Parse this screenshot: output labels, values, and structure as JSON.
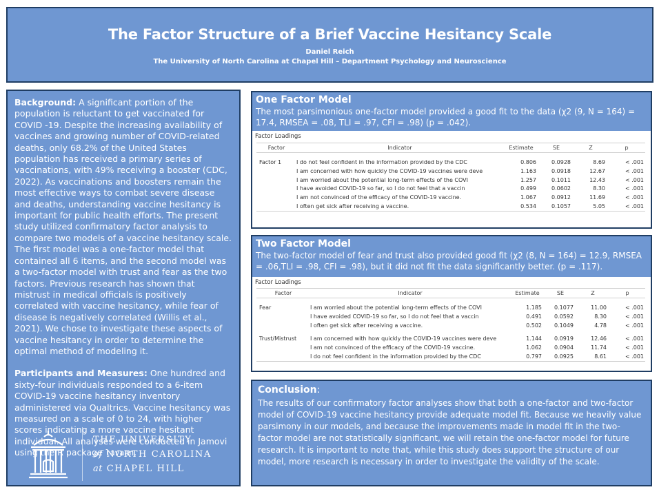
{
  "header": {
    "title": "The Factor Structure of a Brief Vaccine Hesitancy Scale",
    "author": "Daniel Reich",
    "affiliation": "The University of North Carolina at Chapel Hill – Department Psychology and Neuroscience"
  },
  "background": {
    "heading": "Background:",
    "text": " A significant portion of the population is reluctant to get vaccinated for COVID -19. Despite the increasing availability of vaccines and growing number of COVID-related deaths, only 68.2% of the United States population has received a primary series of vaccinations, with 49% receiving a booster (CDC, 2022). As vaccinations and boosters remain the most effective ways to combat severe disease and deaths, understanding vaccine hesitancy is important for public health efforts. The present study utilized confirmatory factor analysis to compare two models of a vaccine hesitancy scale. The first model was a one-factor model that contained all 6 items, and the second model was a two-factor model with trust and fear as the two factors. Previous research has shown that mistrust in medical officials is positively correlated with vaccine hesitancy, while fear of disease is negatively correlated (Willis et al., 2021). We chose to investigate these aspects of vaccine hesitancy in order to determine the optimal method of modeling it."
  },
  "participants": {
    "heading": "Participants and Measures:",
    "text": " One hundred and sixty-four individuals responded to a 6-item COVID-19 vaccine hesitancy inventory administered via Qualtrics. Vaccine hesitancy was measured on a scale of 0 to 24, with higher scores indicating a more vaccine hesitant individual. All analyses were conducted in Jamovi using the R package ",
    "package": "lavaan",
    "end": "."
  },
  "logo": {
    "line1": "THE UNIVERSITY",
    "line2_prefix": "of",
    "line2": "NORTH CAROLINA",
    "line3_prefix": "at",
    "line3": "CHAPEL HILL",
    "icon": "old-well-icon"
  },
  "one_factor": {
    "title": "One Factor Model",
    "description": "The most parsimonious one-factor model provided a good fit to the data (χ2 (9, N = 164) = 17.4, RMSEA = .08, TLI = .97, CFI = .98) (p = .042).",
    "table_caption": "Factor Loadings",
    "columns": [
      "Factor",
      "Indicator",
      "Estimate",
      "SE",
      "Z",
      "p"
    ],
    "rows": [
      {
        "factor": "Factor 1",
        "indicator": "I do not feel confident in the information provided by the CDC",
        "estimate": "0.806",
        "se": "0.0928",
        "z": "8.69",
        "p": "< .001"
      },
      {
        "factor": "",
        "indicator": "I am concerned with how quickly the COVID-19 vaccines were deve",
        "estimate": "1.163",
        "se": "0.0918",
        "z": "12.67",
        "p": "< .001"
      },
      {
        "factor": "",
        "indicator": "I am worried about the potential long-term effects of the COVI",
        "estimate": "1.257",
        "se": "0.1011",
        "z": "12.43",
        "p": "< .001"
      },
      {
        "factor": "",
        "indicator": "I have avoided COVID-19 so far, so I do not feel that a vaccin",
        "estimate": "0.499",
        "se": "0.0602",
        "z": "8.30",
        "p": "< .001"
      },
      {
        "factor": "",
        "indicator": "I am not convinced of the efficacy of the COVID-19 vaccine.",
        "estimate": "1.067",
        "se": "0.0912",
        "z": "11.69",
        "p": "< .001"
      },
      {
        "factor": "",
        "indicator": "I often get sick after receiving a vaccine.",
        "estimate": "0.534",
        "se": "0.1057",
        "z": "5.05",
        "p": "< .001"
      }
    ]
  },
  "two_factor": {
    "title": "Two Factor Model",
    "description": "The two-factor model of fear and trust also provided good fit (χ2 (8, N = 164) = 12.9, RMSEA = .06,TLI = .98, CFI = .98), but it did not fit the data significantly better. (p = .117).",
    "table_caption": "Factor Loadings",
    "columns": [
      "Factor",
      "Indicator",
      "Estimate",
      "SE",
      "Z",
      "p"
    ],
    "rows": [
      {
        "factor": "Fear",
        "indicator": "I am worried about the potential long-term effects of the COVI",
        "estimate": "1.185",
        "se": "0.1077",
        "z": "11.00",
        "p": "< .001"
      },
      {
        "factor": "",
        "indicator": "I have avoided COVID-19 so far, so I do not feel that a vaccin",
        "estimate": "0.491",
        "se": "0.0592",
        "z": "8.30",
        "p": "< .001"
      },
      {
        "factor": "",
        "indicator": "I often get sick after receiving a vaccine.",
        "estimate": "0.502",
        "se": "0.1049",
        "z": "4.78",
        "p": "< .001"
      },
      {
        "factor": "Trust/Mistrust",
        "indicator": "I am concerned with how quickly the COVID-19 vaccines were deve",
        "estimate": "1.144",
        "se": "0.0919",
        "z": "12.46",
        "p": "< .001"
      },
      {
        "factor": "",
        "indicator": "I am not convinced of the efficacy of the COVID-19 vaccine.",
        "estimate": "1.062",
        "se": "0.0904",
        "z": "11.74",
        "p": "< .001"
      },
      {
        "factor": "",
        "indicator": "I do not feel confident in the information provided by the CDC",
        "estimate": "0.797",
        "se": "0.0925",
        "z": "8.61",
        "p": "< .001"
      }
    ]
  },
  "conclusion": {
    "title": "Conclusion",
    "colon": ":",
    "text": "The results of our confirmatory factor analyses show that both a one-factor and two-factor model of COVID-19 vaccine hesitancy provide adequate model fit. Because we heavily value parsimony in our models, and because the improvements made in model fit in the two-factor model are not statistically significant, we will retain the one-factor model for future research. It is important to note that, while this study does support the structure of our model, more research is necessary in order to investigate the validity of the scale."
  },
  "colors": {
    "panel": "#6f97d2",
    "border": "#1f3d63"
  }
}
